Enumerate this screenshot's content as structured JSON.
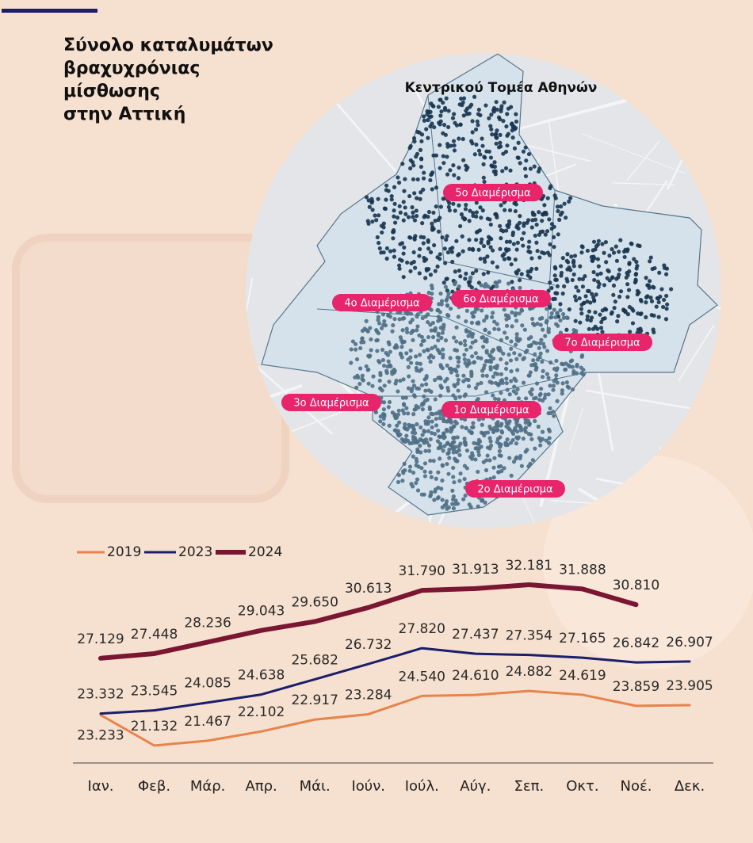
{
  "chart_data": {
    "type": "line",
    "title": [
      "Σύνολο καταλυμάτων",
      "βραχυχρόνιας",
      "μίσθωσης",
      "στην Αττική"
    ],
    "categories": [
      "Ιαν.",
      "Φεβ.",
      "Μάρ.",
      "Απρ.",
      "Μάι.",
      "Ιούν.",
      "Ιούλ.",
      "Αύγ.",
      "Σεπ.",
      "Οκτ.",
      "Νοέ.",
      "Δεκ."
    ],
    "series": [
      {
        "name": "2019",
        "color": "#e8834a",
        "width": 3,
        "values": [
          23233,
          21132,
          21467,
          22102,
          22917,
          23284,
          24540,
          24610,
          24882,
          24619,
          23859,
          23905
        ],
        "value_labels": [
          "23.233",
          "21.132",
          "21.467",
          "22.102",
          "22.917",
          "23.284",
          "24.540",
          "24.610",
          "24.882",
          "24.619",
          "23.859",
          "23.905"
        ]
      },
      {
        "name": "2023",
        "color": "#1b1e6a",
        "width": 3,
        "values": [
          23332,
          23545,
          24085,
          24638,
          25682,
          26732,
          27820,
          27437,
          27354,
          27165,
          26842,
          26907
        ],
        "value_labels": [
          "23.332",
          "23.545",
          "24.085",
          "24.638",
          "25.682",
          "26.732",
          "27.820",
          "27.437",
          "27.354",
          "27.165",
          "26.842",
          "26.907"
        ]
      },
      {
        "name": "2024",
        "color": "#7a1532",
        "width": 6,
        "values": [
          27129,
          27448,
          28236,
          29043,
          29650,
          30613,
          31790,
          31913,
          32181,
          31888,
          30810,
          null
        ],
        "value_labels": [
          "27.129",
          "27.448",
          "28.236",
          "29.043",
          "29.650",
          "30.613",
          "31.790",
          "31.913",
          "32.181",
          "31.888",
          "30.810",
          null
        ]
      }
    ]
  },
  "map": {
    "title": "Κεντρικού Τομέα Αθηνών",
    "labels": [
      "5ο Διαμέρισμα",
      "4ο Διαμέρισμα",
      "6ο Διαμέρισμα",
      "7ο Διαμέρισμα",
      "3ο Διαμέρισμα",
      "1ο Διαμέρισμα",
      "2ο Διαμέρισμα"
    ]
  }
}
